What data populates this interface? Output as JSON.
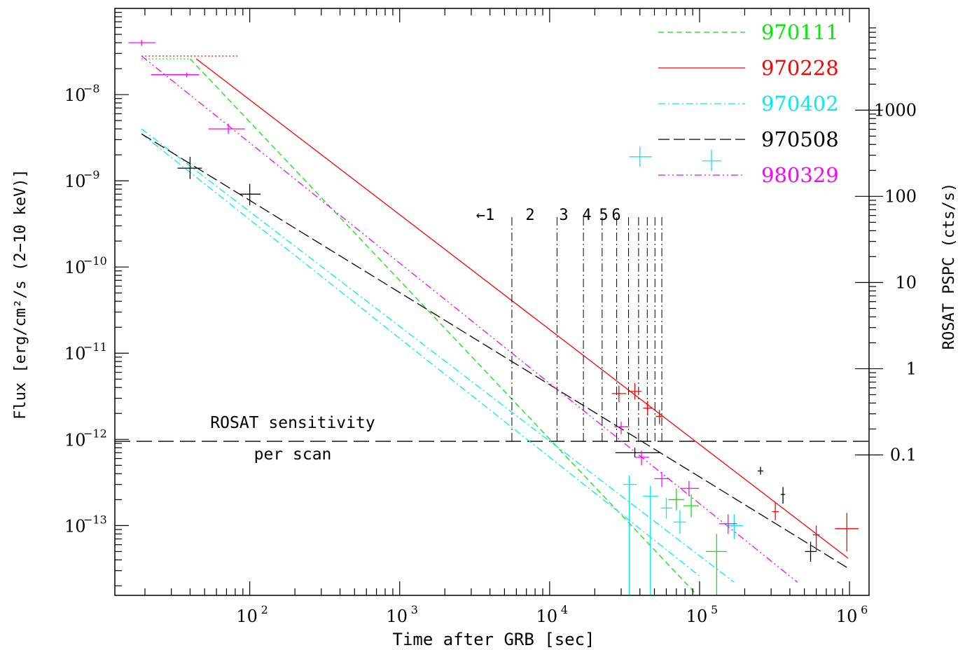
{
  "chart_data": {
    "type": "scatter",
    "xlabel": "Time after GRB [sec]",
    "ylabel": "Flux [erg/cm²/s (2−10 keV)]",
    "y2label": "ROSAT PSPC (cts/s)",
    "x_scale": "log",
    "y_scale": "log",
    "xlim": [
      12.6,
      1350000.0
    ],
    "ylim": [
      1.55e-14,
      1e-07
    ],
    "grid": false,
    "legend_position": "top-right",
    "x_ticks": [
      {
        "base": "10",
        "exp": "2",
        "value": 100
      },
      {
        "base": "10",
        "exp": "3",
        "value": 1000
      },
      {
        "base": "10",
        "exp": "4",
        "value": 10000
      },
      {
        "base": "10",
        "exp": "5",
        "value": 100000
      },
      {
        "base": "10",
        "exp": "6",
        "value": 1000000
      }
    ],
    "y_ticks": [
      {
        "base": "10",
        "exp": "−8",
        "value": 1e-08
      },
      {
        "base": "10",
        "exp": "−9",
        "value": 1e-09
      },
      {
        "base": "10",
        "exp": "−10",
        "value": 1e-10
      },
      {
        "base": "10",
        "exp": "−11",
        "value": 1e-11
      },
      {
        "base": "10",
        "exp": "−12",
        "value": 1e-12
      },
      {
        "base": "10",
        "exp": "−13",
        "value": 1e-13
      }
    ],
    "y2_ticks": [
      {
        "label": "1000",
        "flux": 6.6e-09
      },
      {
        "label": "100",
        "flux": 6.6e-10
      },
      {
        "label": "10",
        "flux": 6.6e-11
      },
      {
        "label": "1",
        "flux": 6.6e-12
      },
      {
        "label": "0.1",
        "flux": 6.6e-13
      }
    ],
    "sensitivity": {
      "flux": 9.5e-13,
      "label_line1": "ROSAT sensitivity",
      "label_line2": "per scan"
    },
    "scans": {
      "labels": [
        "←1",
        "2",
        "3",
        "4",
        "5",
        "6"
      ],
      "times": [
        5600,
        11200,
        16800,
        22400,
        28000,
        33600,
        39200,
        44800,
        50400,
        56000
      ]
    },
    "series": [
      {
        "name": "970111",
        "color": "#00ee00",
        "dash": "8 5",
        "fit": {
          "x": [
            40,
            92000
          ],
          "y": [
            2.6e-08,
            1.7e-14
          ]
        },
        "plateau": {
          "x": [
            19,
            40
          ],
          "y": 2.6e-08
        },
        "points": [
          {
            "x": 70000,
            "y": 2e-13,
            "xlo": 62000,
            "xhi": 79000,
            "ylo": 1.5e-13,
            "yhi": 2.7e-13
          },
          {
            "x": 88000,
            "y": 1.7e-13,
            "xlo": 78000,
            "xhi": 99000,
            "ylo": 1.25e-13,
            "yhi": 2.3e-13
          },
          {
            "x": 130000,
            "y": 5e-14,
            "xlo": 110000,
            "xhi": 152000,
            "ylo": 1.55e-14,
            "yhi": 8e-14
          }
        ]
      },
      {
        "name": "970228",
        "color": "#ff0000",
        "dash": "",
        "fit": {
          "x": [
            44,
            975000
          ],
          "y": [
            2.6e-08,
            4.2e-14
          ]
        },
        "plateau": {
          "x": [
            19,
            85
          ],
          "y": 2.8e-08
        },
        "points": [
          {
            "x": 29000,
            "y": 3.4e-12,
            "xlo": 26000,
            "xhi": 32500,
            "ylo": 2.7e-12,
            "yhi": 4.2e-12
          },
          {
            "x": 37000,
            "y": 3.6e-12,
            "xlo": 33500,
            "xhi": 41000,
            "ylo": 2.9e-12,
            "yhi": 4.5e-12
          },
          {
            "x": 45000,
            "y": 2.3e-12,
            "xlo": 42000,
            "xhi": 48500,
            "ylo": 1.9e-12,
            "yhi": 2.8e-12
          },
          {
            "x": 54000,
            "y": 1.85e-12,
            "xlo": 51000,
            "xhi": 57500,
            "ylo": 1.5e-12,
            "yhi": 2.2e-12
          },
          {
            "x": 320000,
            "y": 1.45e-13,
            "xlo": 305000,
            "xhi": 338000,
            "ylo": 1.15e-13,
            "yhi": 1.85e-13
          },
          {
            "x": 600000,
            "y": 7.8e-14,
            "xlo": 570000,
            "xhi": 632000,
            "ylo": 5e-14,
            "yhi": 1e-13
          },
          {
            "x": 960000,
            "y": 9.2e-14,
            "xlo": 800000,
            "xhi": 1150000,
            "ylo": 5e-14,
            "yhi": 1.4e-13
          }
        ]
      },
      {
        "name": "970402",
        "color": "#00eeee",
        "dash": "10 4 2 4",
        "fit": {
          "x": [
            19,
            170000
          ],
          "y": [
            4e-09,
            2.2e-14
          ]
        },
        "fit2": {
          "x": [
            19,
            100000
          ],
          "y": [
            3.5e-09,
            2.6e-14
          ]
        },
        "points": [
          {
            "x": 40000,
            "y": 1.9e-09,
            "xlo": 34000,
            "xhi": 48000,
            "ylo": 1.45e-09,
            "yhi": 2.5e-09
          },
          {
            "x": 120000,
            "y": 1.7e-09,
            "xlo": 104000,
            "xhi": 140000,
            "ylo": 1.3e-09,
            "yhi": 2.3e-09
          },
          {
            "x": 34000,
            "y": 3e-13,
            "xlo": 31000,
            "xhi": 38000,
            "ylo": 1.55e-14,
            "yhi": 3.8e-13
          },
          {
            "x": 47000,
            "y": 2.2e-13,
            "xlo": 42000,
            "xhi": 53000,
            "ylo": 1.55e-14,
            "yhi": 2.9e-13
          },
          {
            "x": 60000,
            "y": 1.6e-13,
            "xlo": 55000,
            "xhi": 66000,
            "ylo": 1.2e-13,
            "yhi": 2.1e-13
          },
          {
            "x": 74000,
            "y": 1.1e-13,
            "xlo": 67000,
            "xhi": 81000,
            "ylo": 8e-14,
            "yhi": 1.5e-13
          },
          {
            "x": 170000,
            "y": 1e-13,
            "xlo": 150000,
            "xhi": 195000,
            "ylo": 7e-14,
            "yhi": 1.35e-13
          }
        ]
      },
      {
        "name": "970508",
        "color": "#000000",
        "dash": "16 6",
        "fit": {
          "x": [
            19,
            980000
          ],
          "y": [
            3.5e-09,
            3.2e-14
          ]
        },
        "points": [
          {
            "x": 40,
            "y": 1.4e-09,
            "xlo": 33,
            "xhi": 48,
            "ylo": 1.05e-09,
            "yhi": 1.9e-09
          },
          {
            "x": 100,
            "y": 7e-10,
            "xlo": 86,
            "xhi": 118,
            "ylo": 5.2e-10,
            "yhi": 9.2e-10
          },
          {
            "x": 37000,
            "y": 7e-13,
            "xlo": 27500,
            "xhi": 55000,
            "ylo": 6.2e-13,
            "yhi": 8e-13
          },
          {
            "x": 255000,
            "y": 4.3e-13,
            "xlo": 244000,
            "xhi": 266000,
            "ylo": 3.9e-13,
            "yhi": 4.8e-13
          },
          {
            "x": 360000,
            "y": 2.3e-13,
            "xlo": 348000,
            "xhi": 372000,
            "ylo": 1.8e-13,
            "yhi": 2.8e-13
          },
          {
            "x": 550000,
            "y": 5e-14,
            "xlo": 505000,
            "xhi": 600000,
            "ylo": 3.8e-14,
            "yhi": 6.5e-14
          }
        ]
      },
      {
        "name": "980329",
        "color": "#ff00ff",
        "dash": "10 4 2 4 2 4",
        "fit": {
          "x": [
            19,
            450000
          ],
          "y": [
            2.8e-08,
            2.2e-14
          ]
        },
        "points": [
          {
            "x": 19,
            "y": 4e-08,
            "xlo": 15.5,
            "xhi": 23.5,
            "ylo": 3.7e-08,
            "yhi": 4.3e-08
          },
          {
            "x": 38,
            "y": 1.7e-08,
            "xlo": 22,
            "xhi": 46,
            "ylo": 1.6e-08,
            "yhi": 1.8e-08
          },
          {
            "x": 72,
            "y": 4e-09,
            "xlo": 53,
            "xhi": 93,
            "ylo": 3.5e-09,
            "yhi": 4.6e-09
          },
          {
            "x": 30000,
            "y": 1.4e-12,
            "xlo": 27000,
            "xhi": 34000,
            "ylo": 1.15e-12,
            "yhi": 1.6e-12
          },
          {
            "x": 41000,
            "y": 6.2e-13,
            "xlo": 37000,
            "xhi": 46000,
            "ylo": 5e-13,
            "yhi": 7.4e-13
          },
          {
            "x": 56000,
            "y": 3.5e-13,
            "xlo": 50000,
            "xhi": 63000,
            "ylo": 2.8e-13,
            "yhi": 4.2e-13
          },
          {
            "x": 85000,
            "y": 2.7e-13,
            "xlo": 74000,
            "xhi": 99000,
            "ylo": 2.2e-13,
            "yhi": 3.3e-13
          },
          {
            "x": 155000,
            "y": 1.05e-13,
            "xlo": 135000,
            "xhi": 178000,
            "ylo": 8e-14,
            "yhi": 1.35e-13
          }
        ]
      }
    ]
  }
}
